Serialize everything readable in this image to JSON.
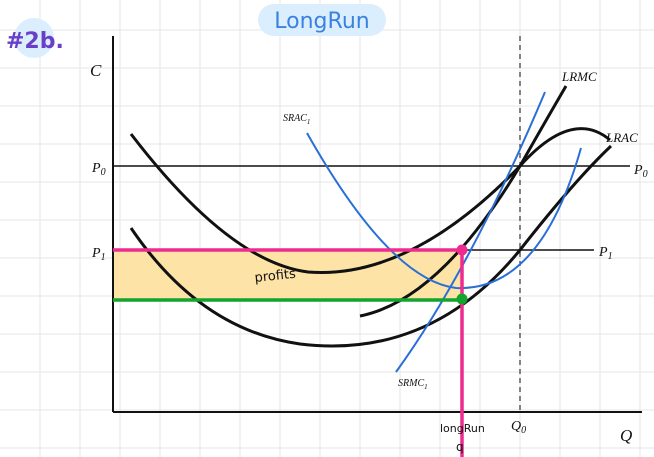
{
  "header": {
    "title": "LongRun",
    "problem_tag": "#2b."
  },
  "axes": {
    "y_label": "C",
    "x_label": "Q"
  },
  "prices": {
    "p0_left": "P",
    "p0_left_sub": "0",
    "p0_right": "P",
    "p0_right_sub": "0",
    "p1_left": "P",
    "p1_left_sub": "1",
    "p1_right": "P",
    "p1_right_sub": "1"
  },
  "curves": {
    "lrmc": "LRMC",
    "lrac": "LRAC",
    "srac": "SRAC",
    "srac_sub": "1",
    "srmc": "SRMC",
    "srmc_sub": "1"
  },
  "annotations": {
    "profits": "profits",
    "q_longrun": "longRun",
    "q_longrun_sub": "q",
    "q0": "Q",
    "q0_sub": "0"
  },
  "colors": {
    "curve_black": "#111111",
    "curve_blue": "#2a6fd6",
    "profit_fill": "#fde4a6",
    "price_line_magenta": "#ee2b8f",
    "cost_line_green": "#13a42d",
    "handwriting_blue": "#3b82e0",
    "title_bg": "#dbeefe"
  }
}
